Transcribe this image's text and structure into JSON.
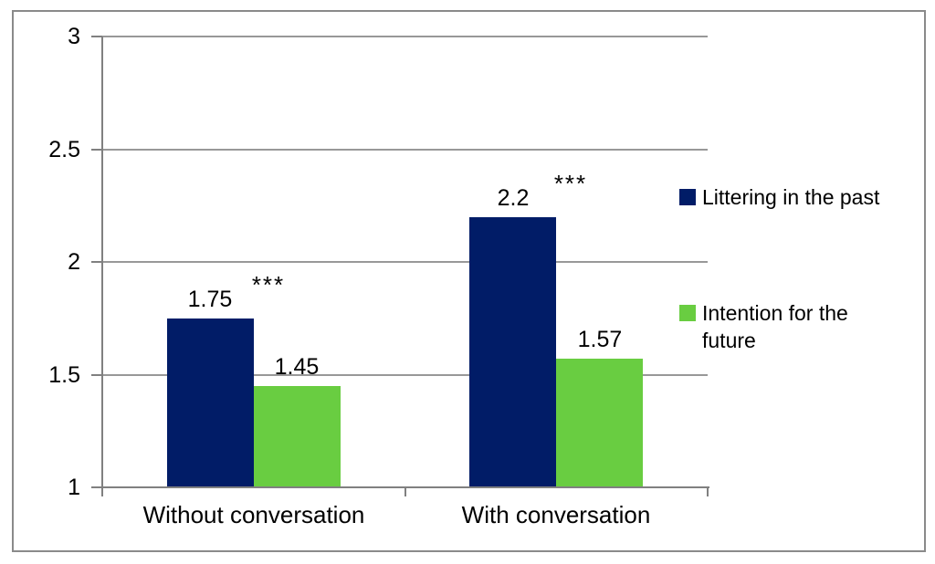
{
  "chart_data": {
    "type": "bar",
    "categories": [
      "Without conversation",
      "With conversation"
    ],
    "series": [
      {
        "name": "Littering in the past",
        "color": "#011c67",
        "values": [
          1.75,
          2.2
        ],
        "value_labels": [
          "1.75",
          "2.2"
        ]
      },
      {
        "name": "Intention for the future",
        "color": "#69cd41",
        "values": [
          1.45,
          1.57
        ],
        "value_labels": [
          "1.45",
          "1.57"
        ]
      }
    ],
    "significance_labels": [
      "***",
      "***"
    ],
    "yticks": [
      1,
      1.5,
      2,
      2.5,
      3
    ],
    "ytick_labels": [
      "1",
      "1.5",
      "2",
      "2.5",
      "3"
    ],
    "ylim": [
      1,
      3
    ],
    "xlabel": "",
    "ylabel": "",
    "title": "",
    "grid": true,
    "legend_position": "right"
  },
  "colors": {
    "background": "#ffffff",
    "gridline": "#989898",
    "axis": "#808080",
    "frame_border": "#8a8a8a",
    "text": "#000000"
  }
}
